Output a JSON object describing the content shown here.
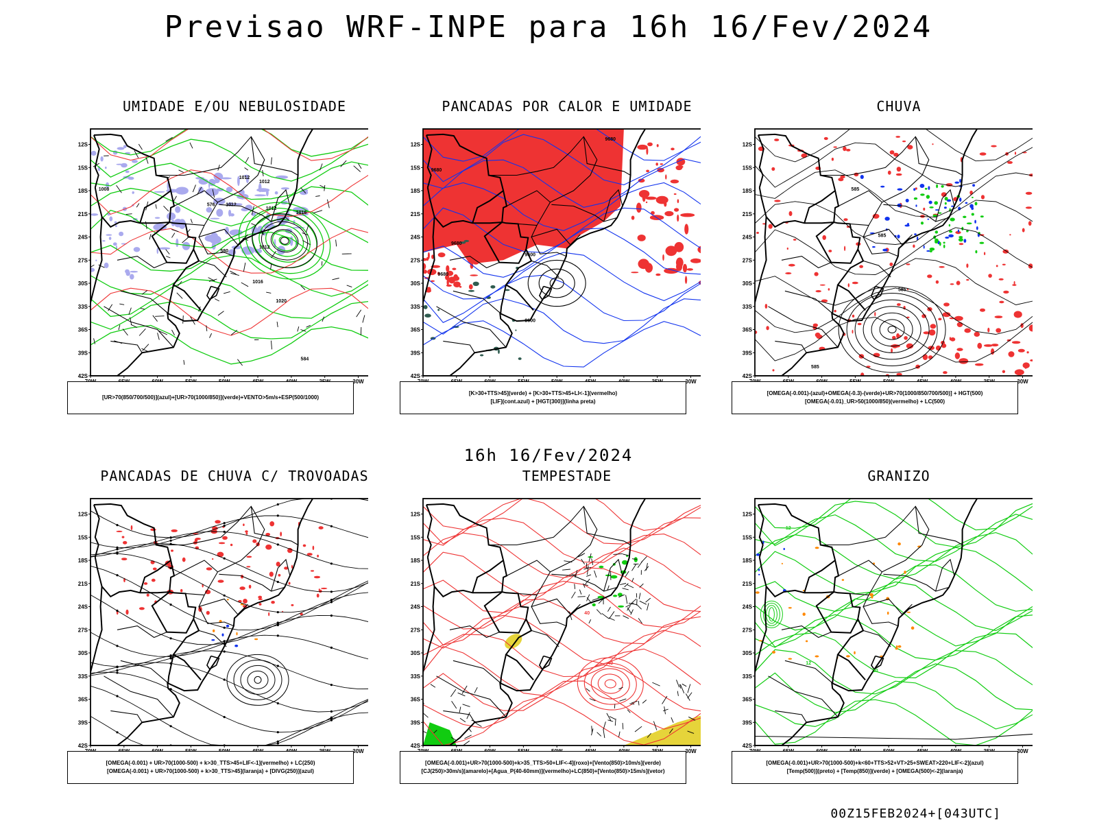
{
  "title": "Previsao WRF-INPE  para 16h 16/Fev/2024",
  "subtitle": "16h 16/Fev/2024",
  "footer": "00Z15FEB2024+[043UTC]",
  "axes": {
    "lat_ticks": [
      "12S",
      "15S",
      "18S",
      "21S",
      "24S",
      "27S",
      "30S",
      "33S",
      "36S",
      "39S",
      "42S"
    ],
    "lon_ticks": [
      "70W",
      "65W",
      "60W",
      "55W",
      "50W",
      "45W",
      "40W",
      "35W",
      "30W"
    ],
    "lat_range": [
      -42,
      -10
    ],
    "lon_range": [
      -70,
      -28
    ]
  },
  "colors": {
    "red": "#ee3333",
    "green": "#11cc11",
    "blue": "#1133ee",
    "lavender": "#aaaaee",
    "yellow": "#e6d43a",
    "orange": "#ff8800",
    "black": "#000000"
  },
  "panels": [
    {
      "title": "UMIDADE E/OU NEBULOSIDADE",
      "legend": [
        "[UR>70(850/700/500)](azul)+[UR>70(1000/850)](verde)+VENTO>5m/s+ESP(500/1000)"
      ],
      "labels": [
        "1012",
        "1012",
        "1012",
        "1012",
        "1012",
        "1016",
        "1016",
        "1020",
        "1008",
        "576",
        "580",
        "584"
      ]
    },
    {
      "title": "PANCADAS POR CALOR E UMIDADE",
      "legend": [
        "[K>30+TTS>45](verde) + [K>30+TTS>45+LI<-1](vermelho)",
        "[LIF](cont.azul) + [HGT(300)](linha preta)"
      ],
      "labels": [
        "9680",
        "9680",
        "9680",
        "9600",
        "9600",
        "9680"
      ]
    },
    {
      "title": "CHUVA",
      "legend": [
        "[OMEGA(-0.001)-(azul)+OMEGA(-0.3)-(verde)+UR>70(1000/850/700/500)] + HGT(500)",
        "[OMEGA(-0.01)_UR>50(1000/850)(vermelho) + LC(500)"
      ],
      "labels": [
        "585",
        "585",
        "585",
        "585"
      ]
    },
    {
      "title": "PANCADAS DE CHUVA C/ TROVOADAS",
      "legend": [
        "[OMEGA(-0.001) + UR>70(1000-500) + k>30_TTS>45+LIF<-1](vermelho) + LC(250)",
        "[OMEGA(-0.001) + UR>70(1000-500) + k>30_TTS>45](laranja) + [DIVG(250)](azul)"
      ],
      "labels": []
    },
    {
      "title": "TEMPESTADE",
      "legend": [
        "[OMEGA(-0.001)+UR>70(1000-500)+k>35_TTS>50+LIF<-4](roxo)+[Vento(850)>10m/s](verde)",
        "[CJ(250)>30m/s](amarelo)+[Agua_P(40-60mm)](vermelho)+LC(850)+[Vento(850)>15m/s](vetor)"
      ],
      "labels": [
        "40",
        "40"
      ]
    },
    {
      "title": "GRANIZO",
      "legend": [
        "[OMEGA(-0.001)+UR>70(1000-500)+k<60+TTS>52+VT>25+SWEAT>220+LIF<-2](azul)",
        "[Temp(500)](preto) + [Temp(850)](verde) + [OMEGA(500)<-2](laranja)"
      ],
      "labels": [
        "12",
        "10",
        "12"
      ]
    }
  ]
}
